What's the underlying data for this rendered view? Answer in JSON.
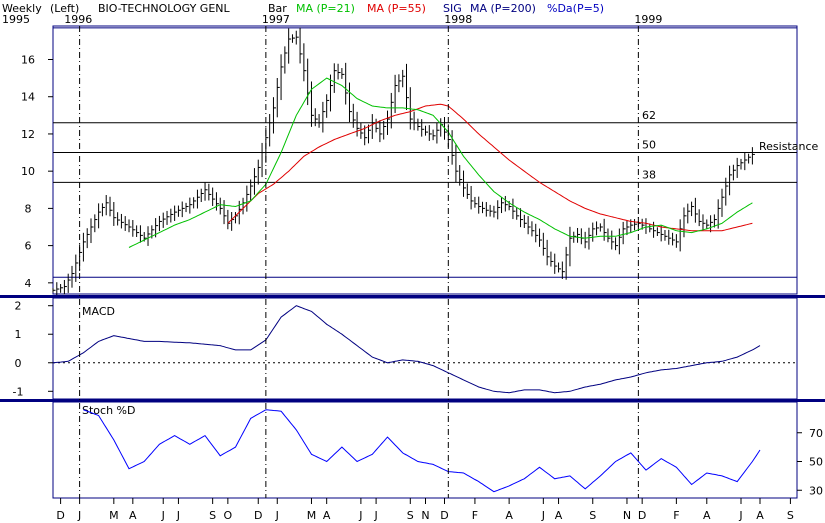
{
  "header": {
    "period": "Weekly",
    "axis_side": "(Left)",
    "security": "BIO-TECHNOLOGY GENL",
    "style": "Bar",
    "ma21": "MA (P=21)",
    "ma55": "MA (P=55)",
    "sig": "SIG",
    "ma200": "MA (P=200)",
    "pctd": "%Da(P=5)"
  },
  "colors": {
    "frame": "#000080",
    "price": "#000000",
    "ma21": "#00c000",
    "ma55": "#e00000",
    "ma200": "#000080",
    "pctd": "#0000c0",
    "macd": "#000080",
    "stoch": "#0000ff",
    "grid_line": "#000080",
    "fib_line": "#000000"
  },
  "chart_data": {
    "type": "line",
    "title": "BIO-TECHNOLOGY GENL",
    "year_labels": [
      {
        "label": "1995",
        "week": 0
      },
      {
        "label": "1996",
        "week": 4
      },
      {
        "label": "1997",
        "week": 56
      },
      {
        "label": "1998",
        "week": 104
      },
      {
        "label": "1999",
        "week": 154
      }
    ],
    "dividers": [
      7,
      56,
      104,
      154
    ],
    "month_labels": [
      "D",
      "J",
      "M",
      "A",
      "J",
      "J",
      "S",
      "O",
      "D",
      "J",
      "M",
      "A",
      "J",
      "J",
      "S",
      "N",
      "D",
      "F",
      "A",
      "J",
      "A",
      "S",
      "N",
      "D",
      "F",
      "A",
      "J",
      "A",
      "S"
    ],
    "month_weeks": [
      2,
      7,
      16,
      21,
      29,
      33,
      42,
      46,
      54,
      59,
      68,
      72,
      81,
      85,
      94,
      98,
      103,
      111,
      120,
      129,
      133,
      142,
      151,
      155,
      164,
      172,
      181,
      186,
      194
    ],
    "price": {
      "ylim": [
        3.4,
        17.8
      ],
      "yticks": [
        4,
        6,
        8,
        10,
        12,
        14,
        16
      ],
      "horizontal_lines": [
        {
          "value": 17.7,
          "label": ""
        },
        {
          "value": 12.6,
          "label": "62"
        },
        {
          "value": 11.0,
          "label": "50"
        },
        {
          "value": 9.4,
          "label": "38"
        },
        {
          "value": 4.3,
          "label": ""
        }
      ],
      "annotation": "Resistance",
      "close_anchors": [
        [
          0,
          3.6
        ],
        [
          3,
          3.8
        ],
        [
          5,
          4.5
        ],
        [
          8,
          6.2
        ],
        [
          10,
          7.0
        ],
        [
          12,
          7.8
        ],
        [
          14,
          8.3
        ],
        [
          16,
          7.5
        ],
        [
          20,
          7.0
        ],
        [
          24,
          6.4
        ],
        [
          28,
          7.3
        ],
        [
          32,
          7.8
        ],
        [
          36,
          8.2
        ],
        [
          40,
          9.0
        ],
        [
          44,
          8.0
        ],
        [
          46,
          7.2
        ],
        [
          48,
          7.6
        ],
        [
          50,
          8.3
        ],
        [
          52,
          9.2
        ],
        [
          54,
          10.2
        ],
        [
          56,
          11.8
        ],
        [
          58,
          13.4
        ],
        [
          60,
          15.6
        ],
        [
          62,
          17.1
        ],
        [
          64,
          17.2
        ],
        [
          66,
          15.4
        ],
        [
          68,
          13.0
        ],
        [
          70,
          12.6
        ],
        [
          72,
          13.8
        ],
        [
          74,
          15.4
        ],
        [
          76,
          15.2
        ],
        [
          78,
          13.2
        ],
        [
          80,
          12.3
        ],
        [
          82,
          11.8
        ],
        [
          84,
          12.6
        ],
        [
          86,
          12.0
        ],
        [
          88,
          12.8
        ],
        [
          90,
          14.6
        ],
        [
          92,
          15.1
        ],
        [
          94,
          12.8
        ],
        [
          96,
          12.4
        ],
        [
          98,
          12.1
        ],
        [
          100,
          11.9
        ],
        [
          102,
          12.5
        ],
        [
          104,
          11.7
        ],
        [
          106,
          10.0
        ],
        [
          108,
          9.1
        ],
        [
          110,
          8.4
        ],
        [
          112,
          8.1
        ],
        [
          114,
          7.9
        ],
        [
          116,
          7.8
        ],
        [
          118,
          8.3
        ],
        [
          120,
          8.1
        ],
        [
          122,
          7.6
        ],
        [
          124,
          7.2
        ],
        [
          126,
          6.8
        ],
        [
          128,
          6.3
        ],
        [
          130,
          5.4
        ],
        [
          132,
          4.9
        ],
        [
          134,
          4.6
        ],
        [
          136,
          6.4
        ],
        [
          138,
          6.6
        ],
        [
          140,
          6.2
        ],
        [
          142,
          6.9
        ],
        [
          144,
          7.0
        ],
        [
          146,
          6.4
        ],
        [
          148,
          6.0
        ],
        [
          150,
          6.9
        ],
        [
          152,
          7.1
        ],
        [
          154,
          7.2
        ],
        [
          156,
          7.0
        ],
        [
          158,
          6.8
        ],
        [
          160,
          6.6
        ],
        [
          162,
          6.4
        ],
        [
          164,
          6.2
        ],
        [
          166,
          7.6
        ],
        [
          168,
          8.1
        ],
        [
          170,
          7.3
        ],
        [
          172,
          7.1
        ],
        [
          174,
          7.4
        ],
        [
          176,
          8.6
        ],
        [
          178,
          9.8
        ],
        [
          180,
          10.3
        ],
        [
          182,
          10.6
        ],
        [
          184,
          10.9
        ]
      ],
      "ma21_anchors": [
        [
          20,
          5.9
        ],
        [
          24,
          6.3
        ],
        [
          28,
          6.7
        ],
        [
          32,
          7.1
        ],
        [
          36,
          7.4
        ],
        [
          40,
          7.8
        ],
        [
          44,
          8.2
        ],
        [
          48,
          8.1
        ],
        [
          52,
          8.4
        ],
        [
          56,
          9.3
        ],
        [
          60,
          11.0
        ],
        [
          64,
          13.0
        ],
        [
          68,
          14.4
        ],
        [
          72,
          15.0
        ],
        [
          76,
          14.6
        ],
        [
          80,
          13.9
        ],
        [
          84,
          13.5
        ],
        [
          88,
          13.4
        ],
        [
          92,
          13.4
        ],
        [
          96,
          13.3
        ],
        [
          100,
          13.0
        ],
        [
          104,
          12.1
        ],
        [
          108,
          10.8
        ],
        [
          112,
          9.8
        ],
        [
          116,
          8.9
        ],
        [
          120,
          8.3
        ],
        [
          124,
          7.8
        ],
        [
          128,
          7.4
        ],
        [
          132,
          6.9
        ],
        [
          136,
          6.5
        ],
        [
          140,
          6.4
        ],
        [
          144,
          6.5
        ],
        [
          148,
          6.5
        ],
        [
          152,
          6.7
        ],
        [
          156,
          7.0
        ],
        [
          160,
          7.1
        ],
        [
          164,
          6.8
        ],
        [
          168,
          6.7
        ],
        [
          172,
          6.9
        ],
        [
          176,
          7.2
        ],
        [
          180,
          7.8
        ],
        [
          184,
          8.3
        ]
      ],
      "ma55_anchors": [
        [
          46,
          7.2
        ],
        [
          50,
          8.0
        ],
        [
          54,
          8.8
        ],
        [
          58,
          9.3
        ],
        [
          62,
          10.0
        ],
        [
          66,
          10.8
        ],
        [
          70,
          11.3
        ],
        [
          74,
          11.7
        ],
        [
          78,
          12.0
        ],
        [
          82,
          12.3
        ],
        [
          86,
          12.7
        ],
        [
          90,
          13.0
        ],
        [
          94,
          13.2
        ],
        [
          98,
          13.5
        ],
        [
          102,
          13.6
        ],
        [
          104,
          13.5
        ],
        [
          108,
          12.8
        ],
        [
          112,
          12.0
        ],
        [
          116,
          11.3
        ],
        [
          120,
          10.6
        ],
        [
          124,
          10.0
        ],
        [
          128,
          9.4
        ],
        [
          132,
          8.9
        ],
        [
          136,
          8.4
        ],
        [
          140,
          8.0
        ],
        [
          144,
          7.7
        ],
        [
          148,
          7.5
        ],
        [
          152,
          7.3
        ],
        [
          156,
          7.2
        ],
        [
          160,
          7.0
        ],
        [
          164,
          6.9
        ],
        [
          168,
          6.8
        ],
        [
          172,
          6.8
        ],
        [
          176,
          6.8
        ],
        [
          180,
          7.0
        ],
        [
          184,
          7.2
        ]
      ]
    },
    "macd": {
      "label": "MACD",
      "ylim": [
        -1.2,
        2.2
      ],
      "yticks": [
        -1,
        0,
        1,
        2
      ],
      "zero_line": 0,
      "anchors": [
        [
          0,
          0.0
        ],
        [
          4,
          0.05
        ],
        [
          8,
          0.35
        ],
        [
          12,
          0.75
        ],
        [
          16,
          0.95
        ],
        [
          20,
          0.85
        ],
        [
          24,
          0.75
        ],
        [
          28,
          0.75
        ],
        [
          32,
          0.72
        ],
        [
          36,
          0.7
        ],
        [
          40,
          0.65
        ],
        [
          44,
          0.6
        ],
        [
          48,
          0.45
        ],
        [
          52,
          0.45
        ],
        [
          56,
          0.8
        ],
        [
          60,
          1.6
        ],
        [
          64,
          2.0
        ],
        [
          68,
          1.8
        ],
        [
          72,
          1.35
        ],
        [
          76,
          1.0
        ],
        [
          80,
          0.6
        ],
        [
          84,
          0.2
        ],
        [
          88,
          0.0
        ],
        [
          92,
          0.1
        ],
        [
          96,
          0.05
        ],
        [
          100,
          -0.1
        ],
        [
          104,
          -0.35
        ],
        [
          108,
          -0.6
        ],
        [
          112,
          -0.85
        ],
        [
          116,
          -1.0
        ],
        [
          120,
          -1.05
        ],
        [
          124,
          -0.95
        ],
        [
          128,
          -0.95
        ],
        [
          132,
          -1.05
        ],
        [
          136,
          -1.0
        ],
        [
          140,
          -0.85
        ],
        [
          144,
          -0.75
        ],
        [
          148,
          -0.6
        ],
        [
          152,
          -0.5
        ],
        [
          156,
          -0.35
        ],
        [
          160,
          -0.25
        ],
        [
          164,
          -0.2
        ],
        [
          168,
          -0.1
        ],
        [
          172,
          0.0
        ],
        [
          176,
          0.05
        ],
        [
          180,
          0.2
        ],
        [
          184,
          0.45
        ],
        [
          186,
          0.6
        ]
      ]
    },
    "stoch": {
      "label": "Stoch %D",
      "ylim": [
        26,
        90
      ],
      "yticks": [
        30,
        50,
        70
      ],
      "anchors": [
        [
          8,
          86
        ],
        [
          12,
          82
        ],
        [
          16,
          65
        ],
        [
          20,
          45
        ],
        [
          24,
          50
        ],
        [
          28,
          62
        ],
        [
          32,
          68
        ],
        [
          36,
          62
        ],
        [
          40,
          68
        ],
        [
          44,
          54
        ],
        [
          48,
          60
        ],
        [
          52,
          80
        ],
        [
          56,
          86
        ],
        [
          60,
          85
        ],
        [
          64,
          72
        ],
        [
          68,
          55
        ],
        [
          72,
          50
        ],
        [
          76,
          60
        ],
        [
          80,
          50
        ],
        [
          84,
          55
        ],
        [
          88,
          67
        ],
        [
          92,
          56
        ],
        [
          96,
          50
        ],
        [
          100,
          48
        ],
        [
          104,
          43
        ],
        [
          108,
          42
        ],
        [
          112,
          36
        ],
        [
          116,
          29
        ],
        [
          120,
          33
        ],
        [
          124,
          38
        ],
        [
          128,
          46
        ],
        [
          132,
          38
        ],
        [
          136,
          40
        ],
        [
          140,
          31
        ],
        [
          144,
          40
        ],
        [
          148,
          50
        ],
        [
          152,
          56
        ],
        [
          156,
          44
        ],
        [
          160,
          52
        ],
        [
          164,
          46
        ],
        [
          168,
          34
        ],
        [
          172,
          42
        ],
        [
          176,
          40
        ],
        [
          180,
          36
        ],
        [
          184,
          50
        ],
        [
          186,
          58
        ]
      ]
    }
  }
}
